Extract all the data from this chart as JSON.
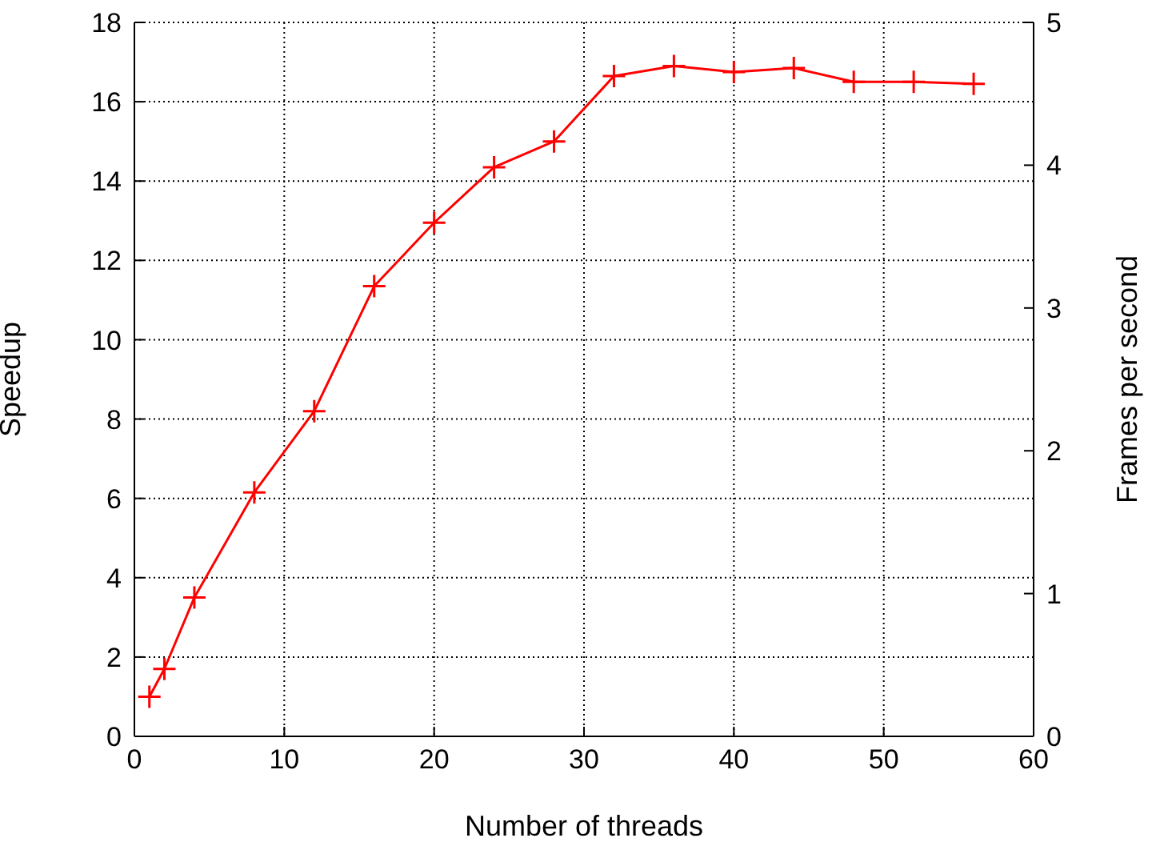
{
  "chart_data": {
    "type": "line",
    "xlabel": "Number of threads",
    "ylabel": "Speedup",
    "y2label": "Frames per second",
    "x": [
      1,
      2,
      4,
      8,
      12,
      16,
      20,
      24,
      28,
      32,
      36,
      40,
      44,
      48,
      52,
      56
    ],
    "series": [
      {
        "color": "#ff0000",
        "values": [
          1.0,
          1.7,
          3.5,
          6.15,
          8.2,
          11.35,
          12.95,
          14.35,
          15.0,
          16.65,
          16.9,
          16.75,
          16.85,
          16.5,
          16.5,
          16.45
        ]
      }
    ],
    "xlim": [
      0,
      60
    ],
    "xticks": [
      0,
      10,
      20,
      30,
      40,
      50,
      60
    ],
    "ylim": [
      0,
      18
    ],
    "yticks": [
      0,
      2,
      4,
      6,
      8,
      10,
      12,
      14,
      16,
      18
    ],
    "y2lim": [
      0,
      5
    ],
    "y2ticks": [
      0,
      1,
      2,
      3,
      4,
      5
    ],
    "grid": true,
    "marker": "cross",
    "line_style": "solid"
  }
}
